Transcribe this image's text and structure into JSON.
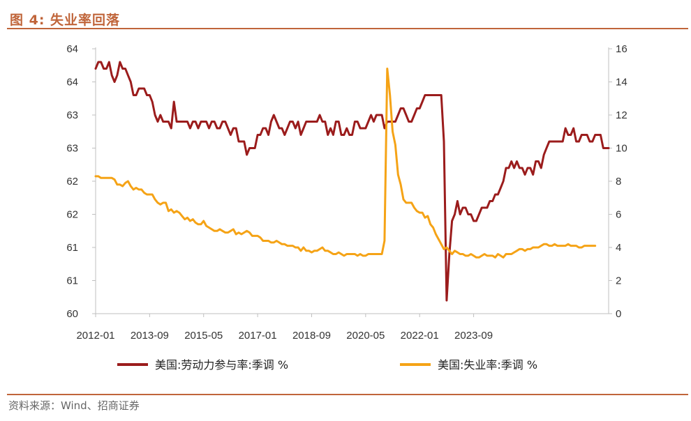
{
  "header": {
    "title": "图 4:  失业率回落"
  },
  "footer": {
    "source": "资料来源：Wind、招商证券"
  },
  "chart_data": {
    "type": "line",
    "title": "图 4:  失业率回落",
    "xlabel": "",
    "ylabel": "",
    "x_tick_labels": [
      "2012-01",
      "2013-09",
      "2015-05",
      "2017-01",
      "2018-09",
      "2020-05",
      "2022-01",
      "2023-09"
    ],
    "y_left_tick_labels": [
      "64",
      "64",
      "63",
      "63",
      "62",
      "62",
      "61",
      "61",
      "60"
    ],
    "y_right_tick_labels": [
      "16",
      "14",
      "12",
      "10",
      "8",
      "6",
      "4",
      "2",
      "0"
    ],
    "y_left_lim": [
      60,
      64
    ],
    "y_right_lim": [
      0,
      16
    ],
    "grid": false,
    "legend_position": "bottom",
    "colors": {
      "participation": "#9b1c1c",
      "unemployment": "#f5a316",
      "axis": "#bfbfbf",
      "accent": "#c0653a"
    },
    "x_start": "2012-01",
    "x_end": "2024-12",
    "series": [
      {
        "name": "美国:劳动力参与率:季调 %",
        "axis": "left",
        "key": "participation",
        "values": [
          63.7,
          63.8,
          63.8,
          63.7,
          63.7,
          63.8,
          63.6,
          63.5,
          63.6,
          63.8,
          63.7,
          63.7,
          63.6,
          63.5,
          63.3,
          63.3,
          63.4,
          63.4,
          63.4,
          63.3,
          63.3,
          63.2,
          63.0,
          62.9,
          63.0,
          62.9,
          62.9,
          62.9,
          62.8,
          63.2,
          62.9,
          62.9,
          62.9,
          62.9,
          62.9,
          62.8,
          62.9,
          62.9,
          62.8,
          62.9,
          62.9,
          62.9,
          62.8,
          62.9,
          62.9,
          62.8,
          62.8,
          62.9,
          62.9,
          62.8,
          62.7,
          62.8,
          62.8,
          62.6,
          62.6,
          62.6,
          62.4,
          62.5,
          62.5,
          62.5,
          62.7,
          62.7,
          62.8,
          62.8,
          62.7,
          62.9,
          63.0,
          62.9,
          62.8,
          62.8,
          62.7,
          62.8,
          62.9,
          62.9,
          62.8,
          62.9,
          62.7,
          62.8,
          62.9,
          62.9,
          62.9,
          62.9,
          62.9,
          63.0,
          62.9,
          62.9,
          62.7,
          62.8,
          62.7,
          62.9,
          62.9,
          62.7,
          62.7,
          62.8,
          62.7,
          62.7,
          62.9,
          62.9,
          62.8,
          62.8,
          62.8,
          62.9,
          63.0,
          62.9,
          63.0,
          63.0,
          63.0,
          62.8,
          62.9,
          62.9,
          62.9,
          62.9,
          63.0,
          63.1,
          63.1,
          63.0,
          62.9,
          62.9,
          63.0,
          63.1,
          63.1,
          63.2,
          63.3,
          63.3,
          63.3,
          63.3,
          63.3,
          63.3,
          63.3,
          62.6,
          60.2,
          60.9,
          61.4,
          61.5,
          61.7,
          61.5,
          61.6,
          61.6,
          61.5,
          61.5,
          61.4,
          61.4,
          61.5,
          61.6,
          61.6,
          61.6,
          61.7,
          61.7,
          61.8,
          61.8,
          61.9,
          62.0,
          62.2,
          62.2,
          62.3,
          62.2,
          62.3,
          62.2,
          62.2,
          62.1,
          62.2,
          62.2,
          62.1,
          62.3,
          62.3,
          62.2,
          62.4,
          62.5,
          62.6,
          62.6,
          62.6,
          62.6,
          62.6,
          62.6,
          62.8,
          62.7,
          62.7,
          62.8,
          62.6,
          62.6,
          62.7,
          62.7,
          62.7,
          62.6,
          62.6,
          62.7,
          62.7,
          62.7,
          62.5,
          62.5,
          62.5
        ]
      },
      {
        "name": "美国:失业率:季调 %",
        "axis": "right",
        "key": "unemployment",
        "values": [
          8.3,
          8.3,
          8.2,
          8.2,
          8.2,
          8.2,
          8.2,
          8.1,
          7.8,
          7.8,
          7.7,
          7.9,
          8.0,
          7.7,
          7.5,
          7.6,
          7.5,
          7.5,
          7.3,
          7.2,
          7.2,
          7.2,
          6.9,
          6.7,
          6.6,
          6.7,
          6.7,
          6.2,
          6.3,
          6.1,
          6.2,
          6.1,
          5.9,
          5.7,
          5.8,
          5.6,
          5.7,
          5.5,
          5.4,
          5.4,
          5.6,
          5.3,
          5.2,
          5.1,
          5.0,
          5.0,
          5.1,
          5.0,
          4.9,
          4.9,
          5.0,
          5.1,
          4.8,
          4.9,
          4.8,
          4.9,
          5.0,
          4.9,
          4.7,
          4.7,
          4.7,
          4.6,
          4.4,
          4.4,
          4.4,
          4.3,
          4.3,
          4.4,
          4.3,
          4.2,
          4.2,
          4.1,
          4.1,
          4.1,
          4.0,
          4.0,
          3.8,
          4.0,
          3.8,
          3.8,
          3.7,
          3.8,
          3.8,
          3.9,
          4.0,
          3.8,
          3.8,
          3.7,
          3.6,
          3.6,
          3.7,
          3.6,
          3.5,
          3.6,
          3.6,
          3.6,
          3.6,
          3.5,
          3.6,
          3.5,
          3.5,
          3.6,
          3.6,
          3.6,
          3.6,
          3.6,
          3.6,
          4.4,
          14.8,
          13.2,
          11.0,
          10.2,
          8.4,
          7.8,
          6.9,
          6.7,
          6.7,
          6.7,
          6.4,
          6.2,
          6.1,
          6.1,
          5.8,
          5.9,
          5.4,
          5.2,
          4.8,
          4.5,
          4.2,
          3.9,
          4.0,
          3.8,
          3.6,
          3.8,
          3.7,
          3.6,
          3.6,
          3.5,
          3.5,
          3.6,
          3.5,
          3.4,
          3.4,
          3.5,
          3.6,
          3.5,
          3.5,
          3.5,
          3.4,
          3.6,
          3.5,
          3.4,
          3.6,
          3.6,
          3.6,
          3.7,
          3.8,
          3.9,
          3.9,
          3.8,
          3.9,
          3.9,
          4.0,
          4.0,
          4.0,
          4.1,
          4.2,
          4.2,
          4.1,
          4.1,
          4.2,
          4.1,
          4.1,
          4.1,
          4.1,
          4.2,
          4.1,
          4.1,
          4.1,
          4.0,
          4.0,
          4.1,
          4.1,
          4.1,
          4.1,
          4.1
        ]
      }
    ]
  }
}
